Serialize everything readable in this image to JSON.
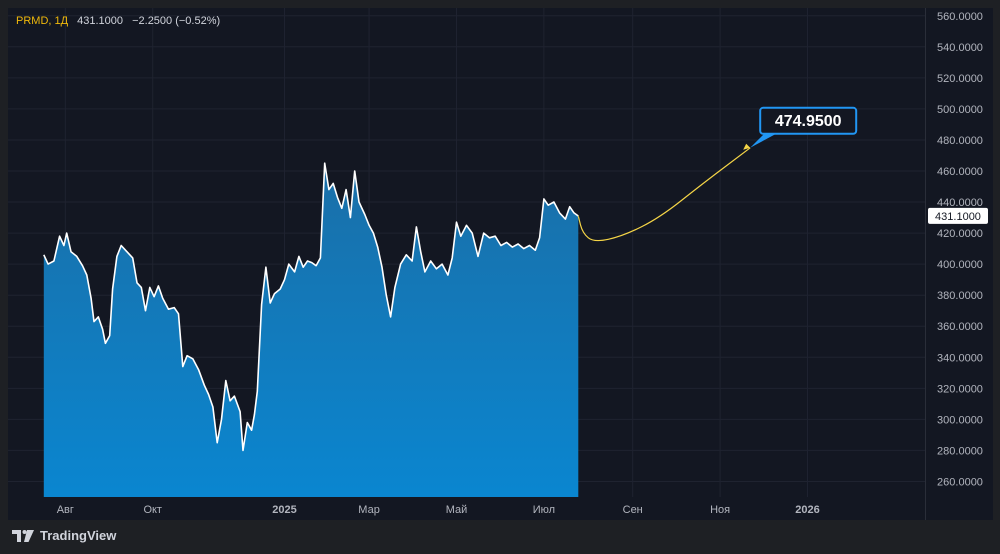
{
  "legend": {
    "symbol": "PRMD, 1Д",
    "price": "431.1000",
    "change": "−2.2500 (−0.52%)"
  },
  "branding": {
    "text": "TradingView",
    "icon": "tradingview-logo-icon"
  },
  "colors": {
    "area_top": "#1a6fa8",
    "area_bottom": "#0a86d0",
    "line": "#ffffff",
    "forecast": "#f5d547",
    "callout_border": "#2196f3",
    "price_tag_bg": "#ffffff"
  },
  "chart_data": {
    "type": "area",
    "title": "",
    "xlabel": "",
    "ylabel": "",
    "ylim": [
      250,
      565
    ],
    "y_ticks": [
      "560.0000",
      "540.0000",
      "520.0000",
      "500.0000",
      "480.0000",
      "460.0000",
      "440.0000",
      "420.0000",
      "400.0000",
      "380.0000",
      "360.0000",
      "340.0000",
      "320.0000",
      "300.0000",
      "280.0000",
      "260.0000"
    ],
    "x_ticks": [
      "Авг",
      "Окт",
      "2025",
      "Мар",
      "Май",
      "Июл",
      "Сен",
      "Ноя",
      "2026"
    ],
    "x_tick_dates": [
      "2024-08-01",
      "2024-10-01",
      "2025-01-01",
      "2025-03-01",
      "2025-05-01",
      "2025-07-01",
      "2025-09-01",
      "2025-11-01",
      "2026-01-01"
    ],
    "x_domain": [
      "2024-06-22",
      "2026-03-24"
    ],
    "grid": true,
    "series": [
      {
        "points": [
          [
            "2024-07-17",
            406
          ],
          [
            "2024-07-20",
            400
          ],
          [
            "2024-07-24",
            402
          ],
          [
            "2024-07-28",
            418
          ],
          [
            "2024-07-31",
            412
          ],
          [
            "2024-08-02",
            420
          ],
          [
            "2024-08-05",
            408
          ],
          [
            "2024-08-09",
            405
          ],
          [
            "2024-08-13",
            399
          ],
          [
            "2024-08-16",
            393
          ],
          [
            "2024-08-19",
            378
          ],
          [
            "2024-08-21",
            363
          ],
          [
            "2024-08-24",
            366
          ],
          [
            "2024-08-27",
            358
          ],
          [
            "2024-08-29",
            349
          ],
          [
            "2024-09-01",
            354
          ],
          [
            "2024-09-03",
            384
          ],
          [
            "2024-09-06",
            405
          ],
          [
            "2024-09-09",
            412
          ],
          [
            "2024-09-13",
            408
          ],
          [
            "2024-09-17",
            404
          ],
          [
            "2024-09-20",
            388
          ],
          [
            "2024-09-23",
            385
          ],
          [
            "2024-09-26",
            370
          ],
          [
            "2024-09-29",
            385
          ],
          [
            "2024-10-02",
            379
          ],
          [
            "2024-10-05",
            386
          ],
          [
            "2024-10-08",
            378
          ],
          [
            "2024-10-12",
            371
          ],
          [
            "2024-10-16",
            372
          ],
          [
            "2024-10-19",
            368
          ],
          [
            "2024-10-22",
            334
          ],
          [
            "2024-10-25",
            341
          ],
          [
            "2024-10-29",
            339
          ],
          [
            "2024-11-02",
            332
          ],
          [
            "2024-11-06",
            322
          ],
          [
            "2024-11-09",
            316
          ],
          [
            "2024-11-12",
            308
          ],
          [
            "2024-11-15",
            285
          ],
          [
            "2024-11-18",
            300
          ],
          [
            "2024-11-21",
            325
          ],
          [
            "2024-11-24",
            312
          ],
          [
            "2024-11-27",
            315
          ],
          [
            "2024-12-01",
            305
          ],
          [
            "2024-12-03",
            280
          ],
          [
            "2024-12-06",
            298
          ],
          [
            "2024-12-09",
            293
          ],
          [
            "2024-12-11",
            303
          ],
          [
            "2024-12-13",
            318
          ],
          [
            "2024-12-16",
            374
          ],
          [
            "2024-12-19",
            398
          ],
          [
            "2024-12-22",
            375
          ],
          [
            "2024-12-25",
            381
          ],
          [
            "2024-12-29",
            384
          ],
          [
            "2025-01-01",
            390
          ],
          [
            "2025-01-04",
            400
          ],
          [
            "2025-01-08",
            395
          ],
          [
            "2025-01-11",
            405
          ],
          [
            "2025-01-14",
            398
          ],
          [
            "2025-01-17",
            402
          ],
          [
            "2025-01-20",
            401
          ],
          [
            "2025-01-23",
            399
          ],
          [
            "2025-01-26",
            404
          ],
          [
            "2025-01-29",
            465
          ],
          [
            "2025-02-01",
            448
          ],
          [
            "2025-02-04",
            452
          ],
          [
            "2025-02-07",
            443
          ],
          [
            "2025-02-10",
            436
          ],
          [
            "2025-02-13",
            448
          ],
          [
            "2025-02-16",
            430
          ],
          [
            "2025-02-19",
            460
          ],
          [
            "2025-02-22",
            440
          ],
          [
            "2025-02-26",
            432
          ],
          [
            "2025-03-01",
            425
          ],
          [
            "2025-03-04",
            420
          ],
          [
            "2025-03-07",
            411
          ],
          [
            "2025-03-10",
            398
          ],
          [
            "2025-03-13",
            380
          ],
          [
            "2025-03-16",
            366
          ],
          [
            "2025-03-19",
            385
          ],
          [
            "2025-03-23",
            400
          ],
          [
            "2025-03-27",
            406
          ],
          [
            "2025-03-31",
            402
          ],
          [
            "2025-04-03",
            424
          ],
          [
            "2025-04-06",
            408
          ],
          [
            "2025-04-09",
            395
          ],
          [
            "2025-04-13",
            402
          ],
          [
            "2025-04-17",
            397
          ],
          [
            "2025-04-21",
            400
          ],
          [
            "2025-04-25",
            393
          ],
          [
            "2025-04-28",
            404
          ],
          [
            "2025-05-01",
            427
          ],
          [
            "2025-05-04",
            418
          ],
          [
            "2025-05-08",
            425
          ],
          [
            "2025-05-12",
            420
          ],
          [
            "2025-05-16",
            405
          ],
          [
            "2025-05-20",
            420
          ],
          [
            "2025-05-24",
            417
          ],
          [
            "2025-05-28",
            418
          ],
          [
            "2025-06-01",
            412
          ],
          [
            "2025-06-05",
            414
          ],
          [
            "2025-06-09",
            411
          ],
          [
            "2025-06-13",
            413
          ],
          [
            "2025-06-17",
            410
          ],
          [
            "2025-06-21",
            412
          ],
          [
            "2025-06-25",
            409
          ],
          [
            "2025-06-28",
            417
          ],
          [
            "2025-07-01",
            442
          ],
          [
            "2025-07-04",
            438
          ],
          [
            "2025-07-08",
            440
          ],
          [
            "2025-07-12",
            433
          ],
          [
            "2025-07-16",
            429
          ],
          [
            "2025-07-19",
            437
          ],
          [
            "2025-07-22",
            433
          ],
          [
            "2025-07-25",
            431
          ]
        ]
      }
    ],
    "forecast": {
      "points": [
        [
          "2025-07-25",
          431
        ],
        [
          "2025-07-28",
          420
        ],
        [
          "2025-08-05",
          414
        ],
        [
          "2025-08-25",
          418
        ],
        [
          "2025-09-20",
          430
        ],
        [
          "2025-10-20",
          452
        ],
        [
          "2025-11-22",
          474.95
        ]
      ],
      "label": "474.9500"
    },
    "last_price_label": "431.1000",
    "last_price": 431.1
  }
}
